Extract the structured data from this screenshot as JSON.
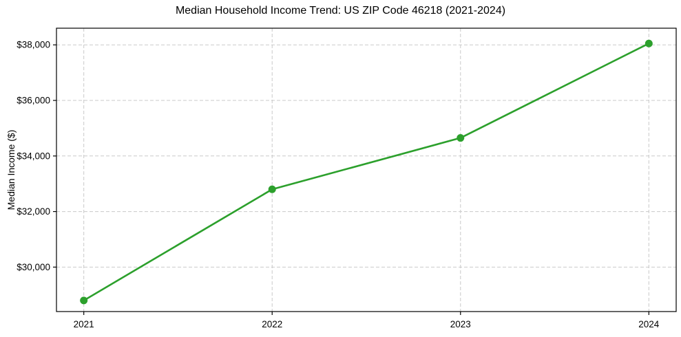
{
  "chart_data": {
    "type": "line",
    "title": "Median Household Income Trend: US ZIP Code 46218 (2021-2024)",
    "xlabel": "",
    "ylabel": "Median Income ($)",
    "categories": [
      "2021",
      "2022",
      "2023",
      "2024"
    ],
    "series": [
      {
        "name": "Median Household Income",
        "values": [
          28800,
          32800,
          34650,
          38050
        ],
        "color": "#2ca02c",
        "marker": "circle"
      }
    ],
    "ylim": [
      28400,
      38600
    ],
    "yticks": [
      30000,
      32000,
      34000,
      36000,
      38000
    ],
    "ytick_labels": [
      "$30,000",
      "$32,000",
      "$34,000",
      "$36,000",
      "$38,000"
    ],
    "grid": true,
    "grid_style": "dashed",
    "legend": "none",
    "colors": {
      "line": "#2ca02c",
      "grid": "#c9c9c9",
      "spine": "#000000",
      "text": "#000000",
      "background": "#ffffff"
    }
  }
}
